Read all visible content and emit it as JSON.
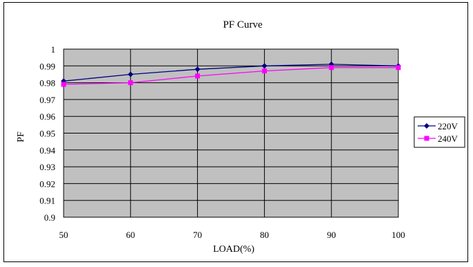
{
  "chart_data": {
    "type": "line",
    "title": "PF Curve",
    "xlabel": "LOAD(%)",
    "ylabel": "PF",
    "x": [
      50,
      60,
      70,
      80,
      90,
      100
    ],
    "xlim": [
      50,
      100
    ],
    "ylim": [
      0.9,
      1.0
    ],
    "x_ticks": [
      "50",
      "60",
      "70",
      "80",
      "90",
      "100"
    ],
    "y_ticks": [
      "0.9",
      "0.91",
      "0.92",
      "0.93",
      "0.94",
      "0.95",
      "0.96",
      "0.97",
      "0.98",
      "0.99",
      "1"
    ],
    "grid": true,
    "legend_position": "right",
    "series": [
      {
        "name": "220V",
        "values": [
          0.981,
          0.985,
          0.988,
          0.99,
          0.991,
          0.99
        ],
        "color": "#000080",
        "marker": "diamond"
      },
      {
        "name": "240V",
        "values": [
          0.979,
          0.98,
          0.984,
          0.987,
          0.989,
          0.989
        ],
        "color": "#ff00ff",
        "marker": "square"
      }
    ],
    "colors": {
      "plot_background": "#c0c0c0",
      "gridline": "#000000"
    }
  }
}
